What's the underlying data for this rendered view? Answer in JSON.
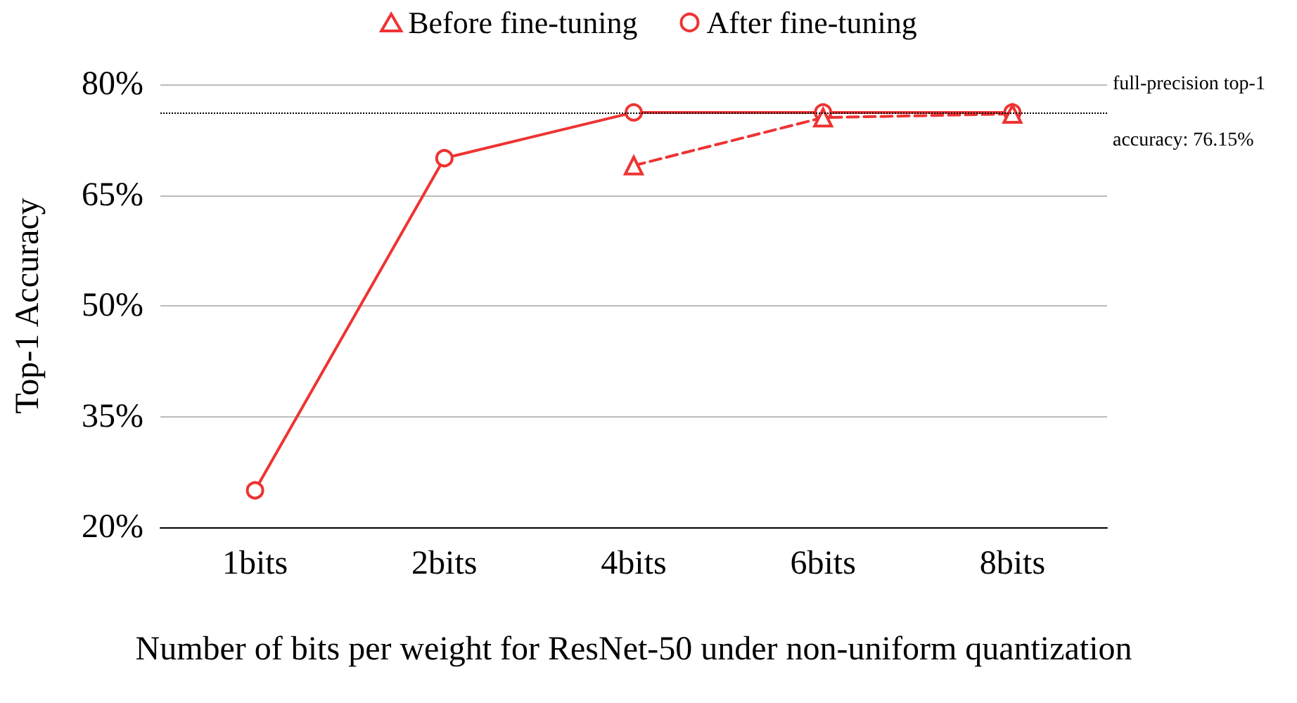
{
  "chart_data": {
    "type": "line",
    "xlabel": "Number of bits per weight for ResNet-50 under non-uniform quantization",
    "ylabel": "Top-1 Accuracy",
    "categories": [
      "1bits",
      "2bits",
      "4bits",
      "6bits",
      "8bits"
    ],
    "ylim": [
      20,
      80
    ],
    "yticks": [
      {
        "value": 20,
        "label": "20%"
      },
      {
        "value": 35,
        "label": "35%"
      },
      {
        "value": 50,
        "label": "50%"
      },
      {
        "value": 65,
        "label": "65%"
      },
      {
        "value": 80,
        "label": "80%"
      }
    ],
    "series": [
      {
        "name": "Before fine-tuning",
        "color": "#ee3333",
        "marker": "triangle",
        "line_style": "dashed",
        "values": [
          null,
          null,
          69,
          75.5,
          76
        ]
      },
      {
        "name": "After fine-tuning",
        "color": "#ee3333",
        "marker": "circle",
        "line_style": "solid",
        "values": [
          25,
          70,
          76.2,
          76.2,
          76.2
        ]
      }
    ],
    "ref_lines": [
      {
        "axis": "y",
        "value": 76.15,
        "label": "full-precision top-1 accuracy: 76.15%",
        "color": "#000000",
        "line_style": "dotted"
      }
    ],
    "grid": "y",
    "legend": "top"
  }
}
